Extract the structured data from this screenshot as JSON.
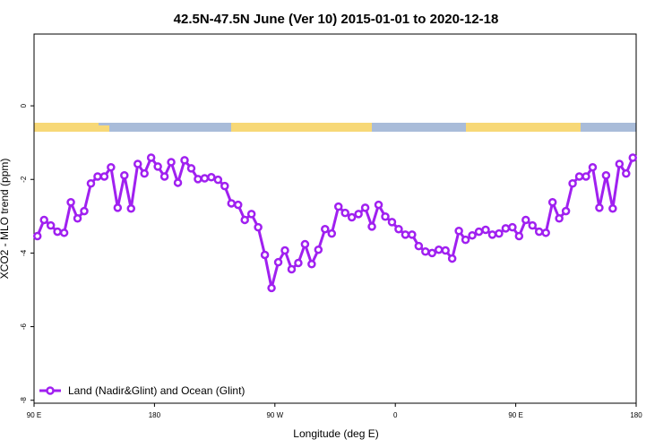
{
  "chart_data": {
    "type": "line",
    "title": "42.5N-47.5N June (Ver 10)   2015-01-01 to 2020-12-18",
    "x_label": "Longitude (deg E)",
    "y_label": "XCO2 - MLO trend (ppm)",
    "x": [
      92.5,
      97.5,
      102.5,
      107.5,
      112.5,
      117.5,
      122.5,
      127.5,
      132.5,
      137.5,
      142.5,
      147.5,
      152.5,
      157.5,
      162.5,
      167.5,
      172.5,
      177.5,
      182.5,
      187.5,
      192.5,
      197.5,
      202.5,
      207.5,
      212.5,
      217.5,
      222.5,
      227.5,
      232.5,
      237.5,
      242.5,
      247.5,
      252.5,
      257.5,
      262.5,
      267.5,
      272.5,
      277.5,
      282.5,
      287.5,
      292.5,
      297.5,
      302.5,
      307.5,
      312.5,
      317.5,
      322.5,
      327.5,
      332.5,
      337.5,
      342.5,
      347.5,
      352.5,
      357.5,
      362.5,
      367.5,
      372.5,
      377.5,
      382.5,
      387.5,
      392.5,
      397.5,
      402.5,
      407.5,
      412.5,
      417.5,
      422.5,
      427.5,
      432.5,
      437.5,
      442.5,
      447.5,
      452.5,
      457.5,
      462.5,
      467.5,
      472.5,
      477.5,
      482.5,
      487.5,
      492.5,
      497.5,
      502.5,
      507.5,
      512.5,
      517.5,
      522.5,
      527.5,
      532.5,
      537.5
    ],
    "series": [
      {
        "name": "Land (Nadir&Glint) and Ocean (Glint)",
        "color": "#a020f0",
        "values": [
          -3.54,
          -3.1,
          -3.25,
          -3.42,
          -3.45,
          -2.62,
          -3.06,
          -2.86,
          -2.11,
          -1.92,
          -1.92,
          -1.67,
          -2.77,
          -1.89,
          -2.79,
          -1.58,
          -1.84,
          -1.41,
          -1.65,
          -1.92,
          -1.53,
          -2.09,
          -1.48,
          -1.7,
          -1.99,
          -1.97,
          -1.94,
          -2.01,
          -2.18,
          -2.65,
          -2.69,
          -3.1,
          -2.94,
          -3.3,
          -4.05,
          -4.95,
          -4.25,
          -3.93,
          -4.44,
          -4.27,
          -3.76,
          -4.3,
          -3.91,
          -3.35,
          -3.47,
          -2.74,
          -2.91,
          -3.03,
          -2.94,
          -2.77,
          -3.28,
          -2.69,
          -3.01,
          -3.16,
          -3.35,
          -3.5,
          -3.5,
          -3.81,
          -3.96,
          -4.0,
          -3.91,
          -3.93,
          -4.15,
          -3.4,
          -3.64,
          -3.52,
          -3.42,
          -3.37,
          -3.5,
          -3.47,
          -3.33,
          -3.3,
          -3.54,
          -3.1,
          -3.25,
          -3.42,
          -3.45,
          -2.62,
          -3.06,
          -2.86,
          -2.11,
          -1.92,
          -1.92,
          -1.67,
          -2.77,
          -1.89,
          -2.79,
          -1.58,
          -1.84,
          -1.41
        ]
      }
    ],
    "xlim": [
      90,
      540
    ],
    "xticks": [
      {
        "value": 90,
        "label": "90 E"
      },
      {
        "value": 180,
        "label": "180"
      },
      {
        "value": 270,
        "label": "90 W"
      },
      {
        "value": 360,
        "label": "0"
      },
      {
        "value": 450,
        "label": "90 E"
      },
      {
        "value": 540,
        "label": "180"
      }
    ],
    "ylim": [
      -8.08,
      1.95
    ],
    "yticks": [
      0,
      -2,
      -4,
      -6,
      -8
    ],
    "legend": "bottom-left"
  }
}
